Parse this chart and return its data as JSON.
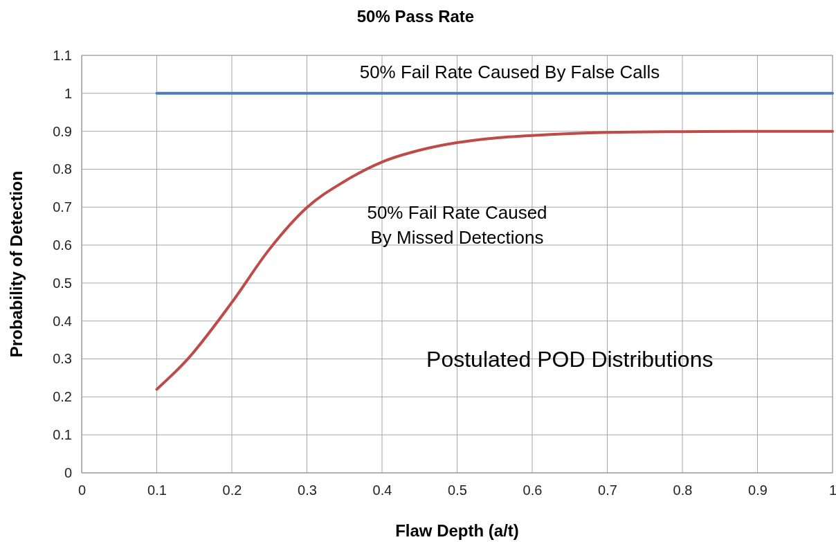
{
  "chart_data": {
    "type": "line",
    "title": "50% Pass Rate",
    "xlabel": "Flaw Depth (a/t)",
    "ylabel": "Probability of Detection",
    "xlim": [
      0,
      1
    ],
    "xticks": [
      0,
      0.1,
      0.2,
      0.3,
      0.4,
      0.5,
      0.6,
      0.7,
      0.8,
      0.9,
      1
    ],
    "ylim": [
      0,
      1.1
    ],
    "yticks": [
      0,
      0.1,
      0.2,
      0.3,
      0.4,
      0.5,
      0.6,
      0.7,
      0.8,
      0.9,
      1,
      1.1
    ],
    "grid": true,
    "marker": "none",
    "line_style": "solid",
    "series": [
      {
        "color": "#4a7ebb",
        "x": [
          0.1,
          0.2,
          0.3,
          0.4,
          0.5,
          0.6,
          0.7,
          0.8,
          0.9,
          1
        ],
        "values": [
          1,
          1,
          1,
          1,
          1,
          1,
          1,
          1,
          1,
          1
        ]
      },
      {
        "color": "#be4b48",
        "x": [
          0.1,
          0.14,
          0.2,
          0.25,
          0.3,
          0.35,
          0.4,
          0.45,
          0.5,
          0.55,
          0.6,
          0.65,
          0.7,
          0.8,
          0.9,
          1
        ],
        "values": [
          0.22,
          0.297,
          0.449,
          0.589,
          0.699,
          0.768,
          0.819,
          0.85,
          0.87,
          0.882,
          0.889,
          0.894,
          0.897,
          0.899,
          0.9,
          0.9
        ]
      }
    ],
    "annotations": [
      "50% Fail Rate Caused By False Calls",
      "50% Fail Rate Caused\nBy Missed Detections",
      "Postulated POD Distributions"
    ]
  }
}
